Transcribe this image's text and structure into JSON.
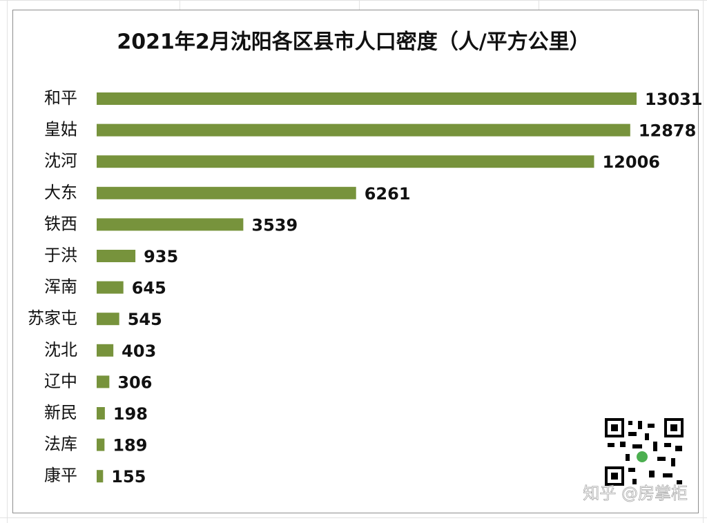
{
  "chart_data": {
    "type": "bar",
    "orientation": "horizontal",
    "title": "2021年2月沈阳各区县市人口密度（人/平方公里）",
    "categories": [
      "和平",
      "皇姑",
      "沈河",
      "大东",
      "铁西",
      "于洪",
      "浑南",
      "苏家屯",
      "沈北",
      "辽中",
      "新民",
      "法库",
      "康平"
    ],
    "values": [
      13031,
      12878,
      12006,
      6261,
      3539,
      935,
      645,
      545,
      403,
      306,
      198,
      189,
      155
    ],
    "color": "#77933c",
    "xlim": [
      0,
      13031
    ],
    "watermark": "知乎 @房掌柜"
  }
}
